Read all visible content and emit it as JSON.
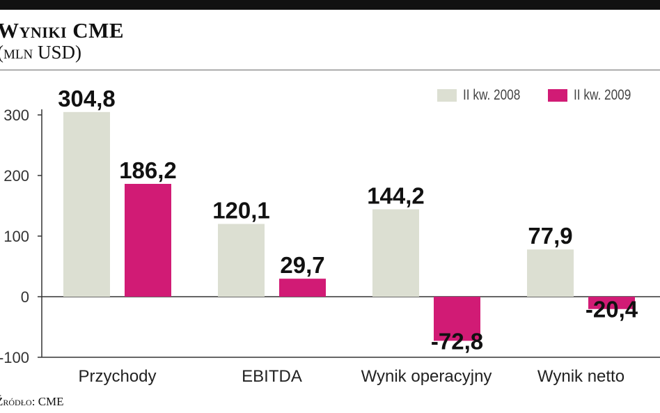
{
  "header": {
    "title": "Wyniki CME",
    "subtitle": "(mln USD)"
  },
  "footer": {
    "source": "Źródło: CME"
  },
  "colors": {
    "series_2008": "#dcdfd2",
    "series_2009": "#d11b75",
    "axis": "#333333"
  },
  "chart_data": {
    "type": "bar",
    "title": "Wyniki CME",
    "subtitle": "(mln USD)",
    "categories": [
      "Przychody",
      "EBITDA",
      "Wynik operacyjny",
      "Wynik netto"
    ],
    "series": [
      {
        "name": "II kw. 2008",
        "values": [
          304.8,
          120.1,
          144.2,
          77.9
        ],
        "labels": [
          "304,8",
          "120,1",
          "144,2",
          "77,9"
        ]
      },
      {
        "name": "II kw. 2009",
        "values": [
          186.2,
          29.7,
          -72.8,
          -20.4
        ],
        "labels": [
          "186,2",
          "29,7",
          "-72,8",
          "-20,4"
        ]
      }
    ],
    "yticks": [
      300,
      200,
      100,
      0,
      -100
    ],
    "ytick_labels": [
      "300",
      "200",
      "100",
      "0",
      "-100"
    ],
    "ylim": [
      -100,
      300
    ],
    "xlabel": "",
    "ylabel": "",
    "grid": false,
    "legend_position": "top-right"
  }
}
